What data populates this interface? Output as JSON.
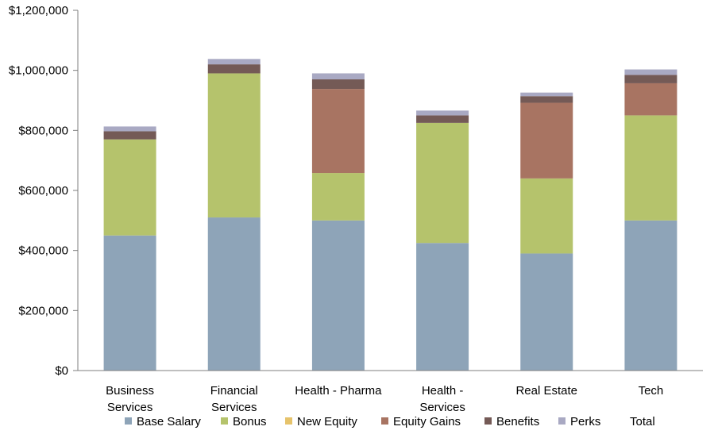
{
  "chart_data": {
    "type": "bar",
    "stacked": true,
    "categories": [
      [
        "Business",
        "Services"
      ],
      [
        "Financial",
        "Services"
      ],
      [
        "Health - Pharma"
      ],
      [
        "Health -",
        "Services"
      ],
      [
        "Real Estate"
      ],
      [
        "Tech"
      ]
    ],
    "series": [
      {
        "name": "Base Salary",
        "color": "#8ea4b8",
        "values": [
          450000,
          510000,
          500000,
          425000,
          390000,
          500000
        ]
      },
      {
        "name": "Bonus",
        "color": "#b5c36c",
        "values": [
          320000,
          480000,
          158000,
          400000,
          250000,
          350000
        ]
      },
      {
        "name": "New Equity",
        "color": "#e6c36b",
        "values": [
          0,
          0,
          0,
          0,
          0,
          0
        ]
      },
      {
        "name": "Equity Gains",
        "color": "#a87462",
        "values": [
          0,
          0,
          280000,
          0,
          252000,
          107000
        ]
      },
      {
        "name": "Benefits",
        "color": "#745a56",
        "values": [
          27000,
          30000,
          32000,
          25000,
          22000,
          28000
        ]
      },
      {
        "name": "Perks",
        "color": "#a9a9c3",
        "values": [
          16000,
          18000,
          20000,
          16000,
          12000,
          18000
        ]
      }
    ],
    "legend_extra": [
      "Total"
    ],
    "ylim": [
      0,
      1200000
    ],
    "yticks": [
      0,
      200000,
      400000,
      600000,
      800000,
      1000000,
      1200000
    ],
    "ytick_labels": [
      "$0",
      "$200,000",
      "$400,000",
      "$600,000",
      "$800,000",
      "$1,000,000",
      "$1,200,000"
    ],
    "title": "",
    "xlabel": "",
    "ylabel": "",
    "grid": false,
    "legend_position": "bottom"
  }
}
